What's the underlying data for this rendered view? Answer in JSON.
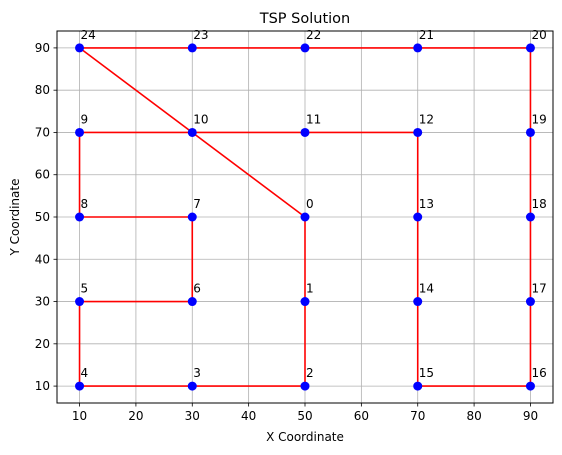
{
  "chart_data": {
    "type": "scatter",
    "title": "TSP Solution",
    "xlabel": "X Coordinate",
    "ylabel": "Y Coordinate",
    "xlim": [
      6,
      94
    ],
    "ylim": [
      6,
      94
    ],
    "xticks": [
      10,
      20,
      30,
      40,
      50,
      60,
      70,
      80,
      90
    ],
    "yticks": [
      10,
      20,
      30,
      40,
      50,
      60,
      70,
      80,
      90
    ],
    "grid": true,
    "colors": {
      "points": "#0000ff",
      "route": "#ff0000",
      "grid": "#b0b0b0"
    },
    "points": [
      {
        "id": "0",
        "x": 50,
        "y": 50
      },
      {
        "id": "1",
        "x": 50,
        "y": 30
      },
      {
        "id": "2",
        "x": 50,
        "y": 10
      },
      {
        "id": "3",
        "x": 30,
        "y": 10
      },
      {
        "id": "4",
        "x": 10,
        "y": 10
      },
      {
        "id": "5",
        "x": 10,
        "y": 30
      },
      {
        "id": "6",
        "x": 30,
        "y": 30
      },
      {
        "id": "7",
        "x": 30,
        "y": 50
      },
      {
        "id": "8",
        "x": 10,
        "y": 50
      },
      {
        "id": "9",
        "x": 10,
        "y": 70
      },
      {
        "id": "10",
        "x": 30,
        "y": 70
      },
      {
        "id": "11",
        "x": 50,
        "y": 70
      },
      {
        "id": "12",
        "x": 70,
        "y": 70
      },
      {
        "id": "13",
        "x": 70,
        "y": 50
      },
      {
        "id": "14",
        "x": 70,
        "y": 30
      },
      {
        "id": "15",
        "x": 70,
        "y": 10
      },
      {
        "id": "16",
        "x": 90,
        "y": 10
      },
      {
        "id": "17",
        "x": 90,
        "y": 30
      },
      {
        "id": "18",
        "x": 90,
        "y": 50
      },
      {
        "id": "19",
        "x": 90,
        "y": 70
      },
      {
        "id": "20",
        "x": 90,
        "y": 90
      },
      {
        "id": "21",
        "x": 70,
        "y": 90
      },
      {
        "id": "22",
        "x": 50,
        "y": 90
      },
      {
        "id": "23",
        "x": 30,
        "y": 90
      },
      {
        "id": "24",
        "x": 10,
        "y": 90
      }
    ],
    "route": [
      "0",
      "1",
      "2",
      "3",
      "4",
      "5",
      "6",
      "7",
      "8",
      "9",
      "10",
      "11",
      "12",
      "13",
      "14",
      "15",
      "16",
      "17",
      "18",
      "19",
      "20",
      "21",
      "22",
      "23",
      "24"
    ]
  }
}
